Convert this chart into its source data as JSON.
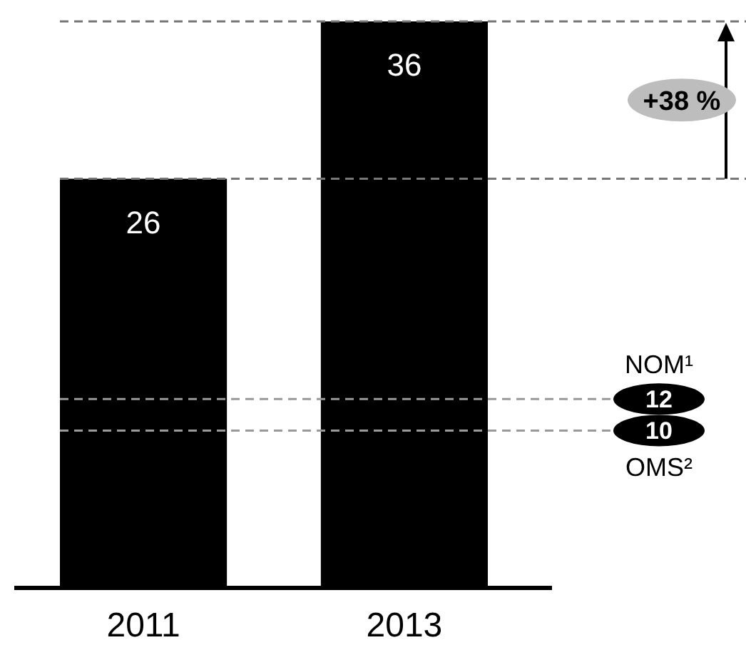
{
  "chart_data": {
    "type": "bar",
    "categories": [
      "2011",
      "2013"
    ],
    "values": [
      26,
      36
    ],
    "color": "#000000",
    "data_labels": true,
    "ref_lines": [
      {
        "axis": "y",
        "value": 36,
        "color": "#777777",
        "line_style": "dashed"
      },
      {
        "axis": "y",
        "value": 26,
        "color": "#777777",
        "line_style": "dashed"
      },
      {
        "axis": "y",
        "value": 12,
        "label": "12",
        "color": "#999999",
        "line_style": "dashed"
      },
      {
        "axis": "y",
        "value": 10,
        "label": "10",
        "color": "#999999",
        "line_style": "dashed"
      }
    ],
    "annotations": [
      "+38 %",
      "NOM¹",
      "OMS²"
    ]
  }
}
